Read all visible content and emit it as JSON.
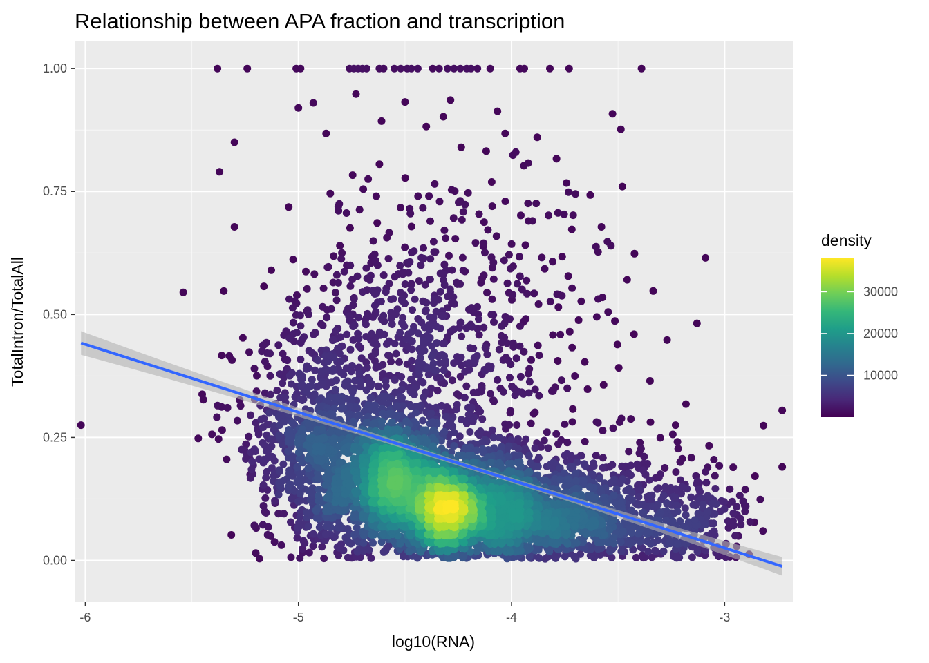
{
  "chart_data": {
    "type": "scatter",
    "title": "Relationship between APA fraction and transcription",
    "xlabel": "log10(RNA)",
    "ylabel": "TotalIntron/TotalAll",
    "xlim": [
      -6.05,
      -2.68
    ],
    "ylim": [
      -0.085,
      1.055
    ],
    "x_ticks": [
      -6,
      -5,
      -4,
      -3
    ],
    "x_tick_labels": [
      "-6",
      "-5",
      "-4",
      "-3"
    ],
    "y_ticks": [
      0,
      0.25,
      0.5,
      0.75,
      1
    ],
    "y_tick_labels": [
      "0.00",
      "0.25",
      "0.50",
      "0.75",
      "1.00"
    ],
    "grid": true,
    "panel_background": "#ebebeb",
    "fit_line": {
      "method": "linear",
      "color": "#3366ff",
      "ribbon_color": "#b3b3b3",
      "x": [
        -6.02,
        -2.73
      ],
      "y": [
        0.442,
        -0.012
      ],
      "se_ends": [
        0.024,
        0.019
      ],
      "se_min": 0.005
    },
    "legend": {
      "title": "density",
      "position": "right",
      "colorbar": [
        "#440154",
        "#482878",
        "#3e4989",
        "#31688e",
        "#26828e",
        "#1f9e89",
        "#35b779",
        "#6ece58",
        "#b5de2b",
        "#fde725"
      ],
      "range": [
        0,
        38000
      ],
      "ticks": [
        10000,
        20000,
        30000
      ],
      "tick_labels": [
        "10000",
        "20000",
        "30000"
      ]
    },
    "points_sample": [
      {
        "x": -6.02,
        "y": 0.275
      },
      {
        "x": -5.47,
        "y": 0.248
      },
      {
        "x": -5.36,
        "y": 0.312
      },
      {
        "x": -5.2,
        "y": 0.015
      },
      {
        "x": -5.22,
        "y": 0.185
      },
      {
        "x": -5.54,
        "y": 0.545
      },
      {
        "x": -5.37,
        "y": 0.79
      },
      {
        "x": -5.3,
        "y": 0.85
      },
      {
        "x": -5.3,
        "y": 0.678
      },
      {
        "x": -4.4,
        "y": 0.882
      },
      {
        "x": -3.48,
        "y": 0.76
      },
      {
        "x": -3.13,
        "y": 0.482
      },
      {
        "x": -3.09,
        "y": 0.615
      },
      {
        "x": -3.27,
        "y": 0.448
      },
      {
        "x": -2.73,
        "y": 0.305
      },
      {
        "x": -2.73,
        "y": 0.19
      },
      {
        "x": -3.09,
        "y": 0.18
      },
      {
        "x": -2.82,
        "y": 0.06
      },
      {
        "x": -4.73,
        "y": 0.948
      },
      {
        "x": -4.5,
        "y": 0.932
      },
      {
        "x": -4.93,
        "y": 0.93
      },
      {
        "x": -5.0,
        "y": 0.92
      },
      {
        "x": -4.32,
        "y": 0.902
      },
      {
        "x": -4.87,
        "y": 0.868
      },
      {
        "x": -4.03,
        "y": 0.868
      },
      {
        "x": -3.98,
        "y": 0.83
      },
      {
        "x": -3.92,
        "y": 0.69
      },
      {
        "x": -3.7,
        "y": 0.745
      },
      {
        "x": -3.55,
        "y": 0.648
      },
      {
        "x": -3.6,
        "y": 0.495
      },
      {
        "x": -3.35,
        "y": 0.365
      },
      {
        "x": -3.23,
        "y": 0.275
      },
      {
        "x": -3.02,
        "y": 0.1
      }
    ],
    "points_at_one_x": [
      -5.38,
      -5.24,
      -5.01,
      -4.99,
      -4.76,
      -4.74,
      -4.72,
      -4.7,
      -4.68,
      -4.62,
      -4.6,
      -4.55,
      -4.52,
      -4.49,
      -4.47,
      -4.44,
      -4.37,
      -4.34,
      -4.3,
      -4.27,
      -4.24,
      -4.21,
      -4.19,
      -4.16,
      -4.1,
      -3.96,
      -3.94,
      -3.82,
      -3.73,
      -3.39
    ]
  }
}
